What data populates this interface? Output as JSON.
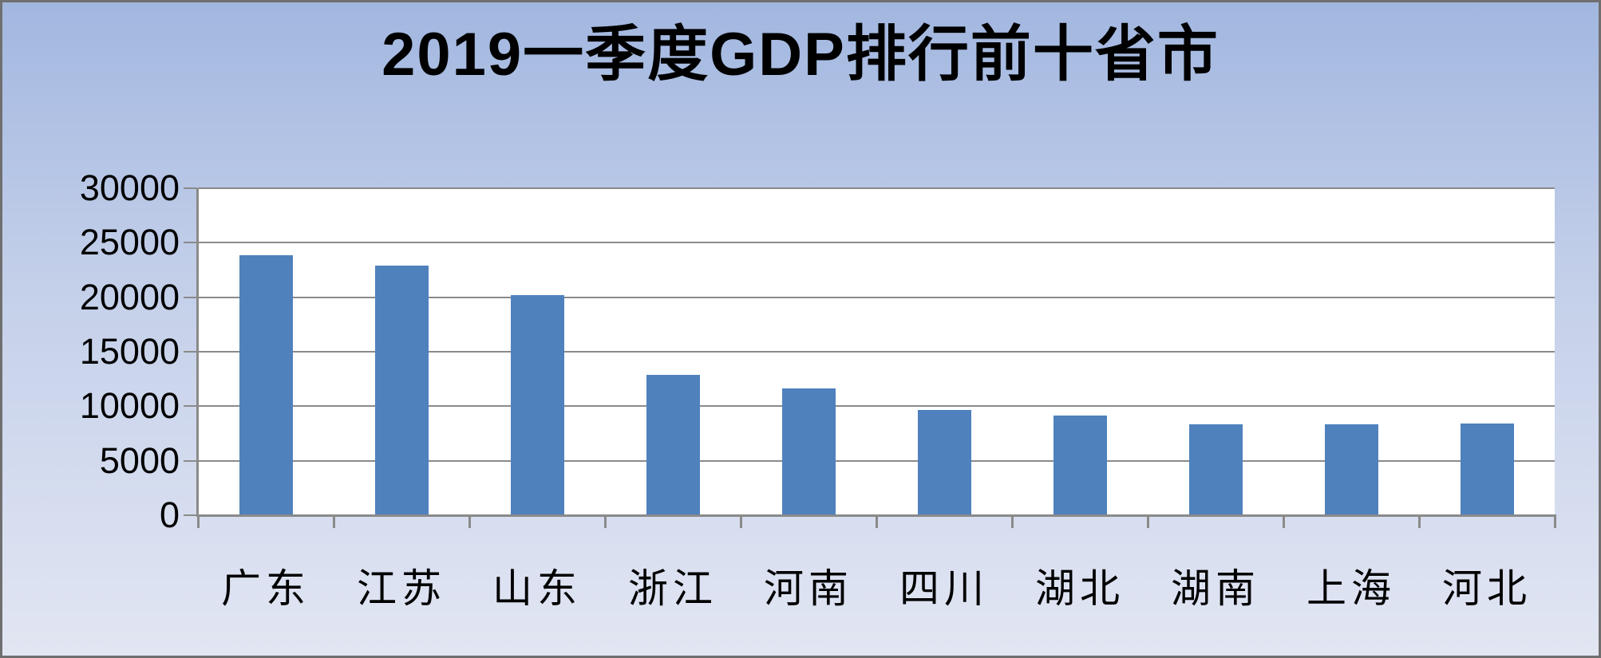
{
  "chart_data": {
    "type": "bar",
    "title": "2019一季度GDP排行前十省市",
    "categories": [
      "广东",
      "江苏",
      "山东",
      "浙江",
      "河南",
      "四川",
      "湖北",
      "湖南",
      "上海",
      "河北"
    ],
    "values": [
      23886.77,
      22883.8,
      20177.4,
      12902.0,
      11639.05,
      9653.18,
      9110.05,
      8372.6,
      8308.28,
      8397.4
    ],
    "series_name": "GDP",
    "xlabel": "",
    "ylabel": "",
    "ylim": [
      0,
      30000
    ],
    "y_ticks": [
      {
        "label": "0",
        "value": 0
      },
      {
        "label": "5000",
        "value": 5000
      },
      {
        "label": "10000",
        "value": 10000
      },
      {
        "label": "15000",
        "value": 15000
      },
      {
        "label": "20000",
        "value": 20000
      },
      {
        "label": "25000",
        "value": 25000
      },
      {
        "label": "30000",
        "value": 30000
      }
    ],
    "grid": "horizontal",
    "legend_position": "none"
  },
  "style": {
    "bar_color": "#4F81BD",
    "grid_color": "#8A8A8A",
    "axis_color": "#8A8A8A",
    "tick_color": "#8A8A8A",
    "plot_bg": "#FFFFFF",
    "bg_top": "#A2B7E0",
    "bg_mid": "#C3CFE9",
    "bg_bottom": "#E2E6F3",
    "frame_border": "#6F6F6F",
    "title_color": "#000000",
    "label_color": "#000000"
  }
}
